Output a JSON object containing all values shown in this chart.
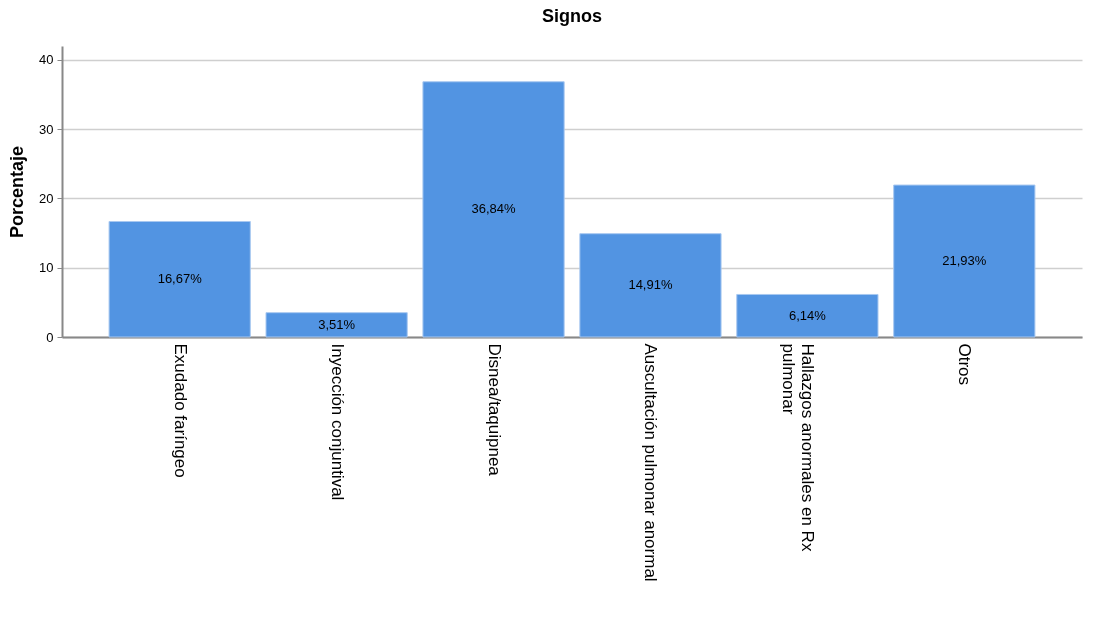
{
  "chart_data": {
    "type": "bar",
    "title": "Signos",
    "ylabel": "Porcentaje",
    "categories": [
      "Exudado faríngeo",
      "Inyección conjuntival",
      "Disnea/taquipnea",
      "Auscultación pulmonar anormal",
      "Hallazgos anormales en Rx pulmonar",
      "Otros"
    ],
    "values": [
      16.67,
      3.51,
      36.84,
      14.91,
      6.14,
      21.93
    ],
    "value_labels": [
      "16,67%",
      "3,51%",
      "36,84%",
      "14,91%",
      "6,14%",
      "21,93%"
    ],
    "color": "#5294e2",
    "ylim": [
      0,
      42
    ],
    "yticks": [
      0,
      10,
      20,
      30,
      40
    ],
    "grid": "y"
  }
}
